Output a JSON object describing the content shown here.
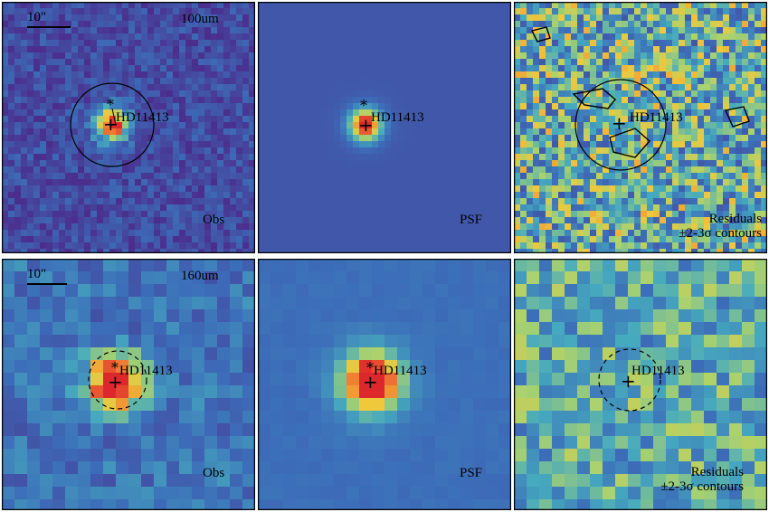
{
  "target_name": "HD11413",
  "scale_bar_label": "10\"",
  "rows": [
    {
      "band": "100um",
      "panels": [
        {
          "name": "obs",
          "corner_label": "Obs"
        },
        {
          "name": "psf",
          "corner_label": "PSF"
        },
        {
          "name": "residuals",
          "corner_label_line1": "Residuals",
          "corner_label_line2": "±2-3σ contours"
        }
      ]
    },
    {
      "band": "160um",
      "panels": [
        {
          "name": "obs",
          "corner_label": "Obs"
        },
        {
          "name": "psf",
          "corner_label": "PSF"
        },
        {
          "name": "residuals",
          "corner_label_line1": "Residuals",
          "corner_label_line2": "±2-3σ contours"
        }
      ]
    }
  ],
  "colors": {
    "background_low": "#4b2d8c",
    "background_mid": "#3b6fb6",
    "peak": "#e8383a",
    "panel_border": "#000000"
  }
}
